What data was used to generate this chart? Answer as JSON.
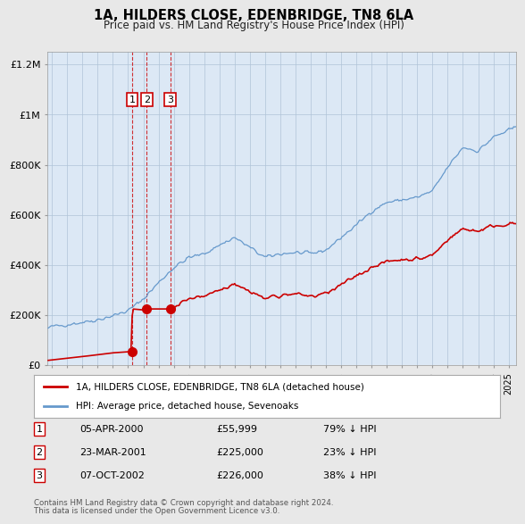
{
  "title": "1A, HILDERS CLOSE, EDENBRIDGE, TN8 6LA",
  "subtitle": "Price paid vs. HM Land Registry's House Price Index (HPI)",
  "ylim": [
    0,
    1250000
  ],
  "xlim_start": 1994.7,
  "xlim_end": 2025.5,
  "yticks": [
    0,
    200000,
    400000,
    600000,
    800000,
    1000000,
    1200000
  ],
  "ytick_labels": [
    "£0",
    "£200K",
    "£400K",
    "£600K",
    "£800K",
    "£1M",
    "£1.2M"
  ],
  "xticks": [
    1995,
    1996,
    1997,
    1998,
    1999,
    2000,
    2001,
    2002,
    2003,
    2004,
    2005,
    2006,
    2007,
    2008,
    2009,
    2010,
    2011,
    2012,
    2013,
    2014,
    2015,
    2016,
    2017,
    2018,
    2019,
    2020,
    2021,
    2022,
    2023,
    2024,
    2025
  ],
  "transactions": [
    {
      "num": 1,
      "date": "05-APR-2000",
      "year": 2000.27,
      "price": 55999,
      "label": "79% ↓ HPI"
    },
    {
      "num": 2,
      "date": "23-MAR-2001",
      "year": 2001.23,
      "price": 225000,
      "label": "23% ↓ HPI"
    },
    {
      "num": 3,
      "date": "07-OCT-2002",
      "year": 2002.77,
      "price": 226000,
      "label": "38% ↓ HPI"
    }
  ],
  "legend_red_label": "1A, HILDERS CLOSE, EDENBRIDGE, TN8 6LA (detached house)",
  "legend_blue_label": "HPI: Average price, detached house, Sevenoaks",
  "footer_line1": "Contains HM Land Registry data © Crown copyright and database right 2024.",
  "footer_line2": "This data is licensed under the Open Government Licence v3.0.",
  "red_color": "#cc0000",
  "blue_color": "#6699cc",
  "bg_color": "#e8e8e8",
  "plot_bg_color": "#dce8f5",
  "grid_color": "#b0c4d8"
}
